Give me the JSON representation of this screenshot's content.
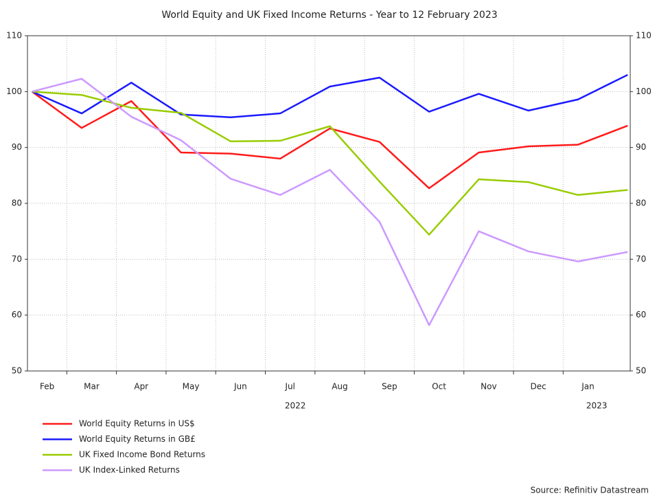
{
  "chart_data": {
    "type": "line",
    "title": "World Equity and UK Fixed Income Returns - Year to 12 February 2023",
    "x": [
      "2022-02",
      "2022-03",
      "2022-04",
      "2022-05",
      "2022-06",
      "2022-07",
      "2022-08",
      "2022-09",
      "2022-10",
      "2022-11",
      "2022-12",
      "2023-01",
      "2023-02"
    ],
    "xticks": [
      {
        "value": "2022-02",
        "label": "Feb"
      },
      {
        "value": "2022-03",
        "label": "Mar"
      },
      {
        "value": "2022-04",
        "label": "Apr"
      },
      {
        "value": "2022-05",
        "label": "May"
      },
      {
        "value": "2022-06",
        "label": "Jun"
      },
      {
        "value": "2022-07",
        "label": "Jul"
      },
      {
        "value": "2022-08",
        "label": "Aug"
      },
      {
        "value": "2022-09",
        "label": "Sep"
      },
      {
        "value": "2022-10",
        "label": "Oct"
      },
      {
        "value": "2022-11",
        "label": "Nov"
      },
      {
        "value": "2022-12",
        "label": "Dec"
      },
      {
        "value": "2023-01",
        "label": "Jan"
      }
    ],
    "years": [
      "2022",
      "2023"
    ],
    "series": [
      {
        "name": "World Equity Returns in US$",
        "color": "#ff1a1a",
        "values": [
          100,
          93.5,
          98.3,
          89.1,
          88.9,
          88.0,
          93.4,
          91.0,
          82.7,
          89.1,
          90.2,
          90.5,
          93.9
        ]
      },
      {
        "name": "World Equity Returns in GB£",
        "color": "#1a1aff",
        "values": [
          100,
          96.1,
          101.6,
          95.9,
          95.4,
          96.1,
          100.9,
          102.5,
          96.4,
          99.6,
          96.6,
          98.6,
          103.0
        ]
      },
      {
        "name": "UK Fixed Income Bond Returns",
        "color": "#99cc00",
        "values": [
          100,
          99.4,
          97.1,
          96.2,
          91.1,
          91.2,
          93.8,
          83.9,
          74.4,
          84.3,
          83.8,
          81.5,
          82.4
        ]
      },
      {
        "name": "UK Index-Linked Returns",
        "color": "#cc99ff",
        "values": [
          100,
          102.3,
          95.5,
          91.3,
          84.4,
          81.5,
          86.0,
          76.7,
          58.2,
          75.0,
          71.4,
          69.6,
          71.3
        ]
      }
    ],
    "ylim": [
      50,
      110
    ],
    "yticks": [
      50,
      60,
      70,
      80,
      90,
      100,
      110
    ],
    "grid": true,
    "source": "Source: Refinitiv Datastream"
  }
}
